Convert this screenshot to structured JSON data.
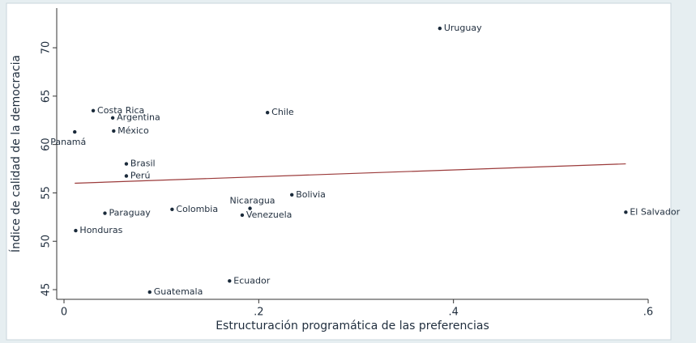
{
  "chart_data": {
    "type": "scatter",
    "xlabel": "Estructuración programática de las preferencias",
    "ylabel": "Índice de calidad de la democracia",
    "point_labels": [
      "Uruguay",
      "Costa Rica",
      "Argentina",
      "México",
      "Panamá",
      "Chile",
      "Brasil",
      "Perú",
      "Bolivia",
      "Nicaragua",
      "Venezuela",
      "Colombia",
      "Paraguay",
      "El Salvador",
      "Honduras",
      "Ecuador",
      "Guatemala"
    ],
    "x": [
      0.386,
      0.03,
      0.05,
      0.051,
      0.011,
      0.209,
      0.064,
      0.064,
      0.234,
      0.191,
      0.183,
      0.111,
      0.042,
      0.577,
      0.012,
      0.17,
      0.088
    ],
    "values": [
      72.0,
      63.5,
      62.75,
      61.4,
      61.3,
      63.3,
      58.0,
      56.75,
      54.8,
      53.4,
      52.7,
      53.3,
      52.9,
      53.0,
      51.1,
      45.9,
      44.75
    ],
    "color": "#1a2a3a",
    "fit": {
      "x": [
        0.011,
        0.577
      ],
      "values": [
        56.0,
        58.0
      ],
      "color": "#9b3a3a"
    },
    "xlim": [
      -0.0075,
      0.6
    ],
    "ylim": [
      44,
      74.1
    ],
    "xticks": [
      0,
      {
        "value": 0.2,
        "label": ".2"
      },
      {
        "value": 0.4,
        "label": ".4"
      },
      {
        "value": 0.6,
        "label": ".6"
      }
    ],
    "yticks": [
      45,
      50,
      55,
      60,
      65,
      70
    ]
  }
}
